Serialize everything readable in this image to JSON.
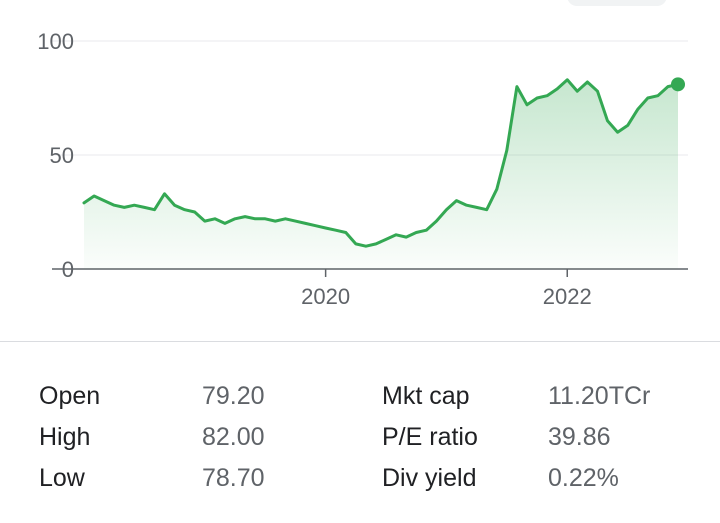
{
  "chart_data": {
    "type": "area",
    "title": "",
    "xlabel": "",
    "ylabel": "",
    "xlim": [
      "2018-01",
      "2022-12"
    ],
    "ylim": [
      0,
      100
    ],
    "y_ticks": [
      0,
      50,
      100
    ],
    "x_ticks": [
      {
        "label": "2020",
        "date": "2020-01"
      },
      {
        "label": "2022",
        "date": "2022-01"
      }
    ],
    "grid": true,
    "legend": "none",
    "line_color": "#34a853",
    "fill_color": "#34a853",
    "end_marker": true,
    "series": [
      {
        "points": [
          [
            "2018-01",
            29
          ],
          [
            "2018-02",
            32
          ],
          [
            "2018-03",
            30
          ],
          [
            "2018-04",
            28
          ],
          [
            "2018-05",
            27
          ],
          [
            "2018-06",
            28
          ],
          [
            "2018-07",
            27
          ],
          [
            "2018-08",
            26
          ],
          [
            "2018-09",
            33
          ],
          [
            "2018-10",
            28
          ],
          [
            "2018-11",
            26
          ],
          [
            "2018-12",
            25
          ],
          [
            "2019-01",
            21
          ],
          [
            "2019-02",
            22
          ],
          [
            "2019-03",
            20
          ],
          [
            "2019-04",
            22
          ],
          [
            "2019-05",
            23
          ],
          [
            "2019-06",
            22
          ],
          [
            "2019-07",
            22
          ],
          [
            "2019-08",
            21
          ],
          [
            "2019-09",
            22
          ],
          [
            "2019-10",
            21
          ],
          [
            "2019-11",
            20
          ],
          [
            "2019-12",
            19
          ],
          [
            "2020-01",
            18
          ],
          [
            "2020-02",
            17
          ],
          [
            "2020-03",
            16
          ],
          [
            "2020-04",
            11
          ],
          [
            "2020-05",
            10
          ],
          [
            "2020-06",
            11
          ],
          [
            "2020-07",
            13
          ],
          [
            "2020-08",
            15
          ],
          [
            "2020-09",
            14
          ],
          [
            "2020-10",
            16
          ],
          [
            "2020-11",
            17
          ],
          [
            "2020-12",
            21
          ],
          [
            "2021-01",
            26
          ],
          [
            "2021-02",
            30
          ],
          [
            "2021-03",
            28
          ],
          [
            "2021-04",
            27
          ],
          [
            "2021-05",
            26
          ],
          [
            "2021-06",
            35
          ],
          [
            "2021-07",
            52
          ],
          [
            "2021-08",
            80
          ],
          [
            "2021-09",
            72
          ],
          [
            "2021-10",
            75
          ],
          [
            "2021-11",
            76
          ],
          [
            "2021-12",
            79
          ],
          [
            "2022-01",
            83
          ],
          [
            "2022-02",
            78
          ],
          [
            "2022-03",
            82
          ],
          [
            "2022-04",
            78
          ],
          [
            "2022-05",
            65
          ],
          [
            "2022-06",
            60
          ],
          [
            "2022-07",
            63
          ],
          [
            "2022-08",
            70
          ],
          [
            "2022-09",
            75
          ],
          [
            "2022-10",
            76
          ],
          [
            "2022-11",
            80
          ],
          [
            "2022-12",
            81
          ]
        ]
      }
    ]
  },
  "stats": {
    "rows": [
      {
        "left_label": "Open",
        "left_value": "79.20",
        "right_label": "Mkt cap",
        "right_value": "11.20TCr"
      },
      {
        "left_label": "High",
        "left_value": "82.00",
        "right_label": "P/E ratio",
        "right_value": "39.86"
      },
      {
        "left_label": "Low",
        "left_value": "78.70",
        "right_label": "Div yield",
        "right_value": "0.22%"
      }
    ]
  }
}
